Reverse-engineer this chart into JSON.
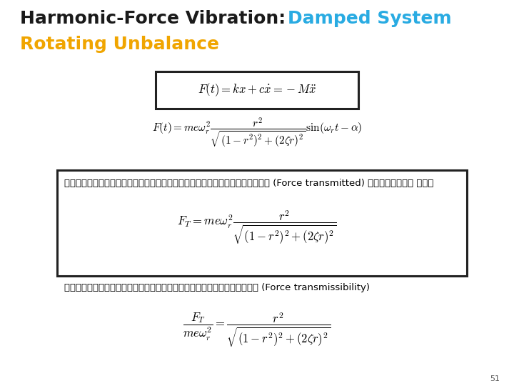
{
  "bg_color": "#ffffff",
  "title_part1": "Harmonic-Force Vibration:",
  "title_part2": "Damped System",
  "subtitle": "Rotating Unbalance",
  "title_color1": "#1a1a1a",
  "title_color2": "#29abe2",
  "subtitle_color": "#f0a500",
  "title_fontsize": 18,
  "subtitle_fontsize": 18,
  "page_number": "51",
  "eq1_latex": "$F(t) = kx + c\\dot{x} = -M\\ddot{x}$",
  "eq2_latex": "$F(t) = me\\omega_r^2 \\dfrac{r^2}{\\sqrt{(1-r^2)^2+(2\\zeta r)^2}} \\sin(\\omega_r t - \\alpha)$",
  "box1_text_th": "โดยที่ขนาดการสั่นสูงสุดของแรงส่งผ่าน (Force transmitted) ไปยังฐาน คือ",
  "eq3_latex": "$F_T = me\\omega_r^2 \\dfrac{r^2}{\\sqrt{(1-r^2)^2+(2\\zeta r)^2}}$",
  "text2_th": "เรากำหนดให้ความสามารถการส่งถ่ายแรง (Force transmissibility)",
  "eq4_latex": "$\\dfrac{F_T}{me\\omega_r^2} = \\dfrac{r^2}{\\sqrt{(1-r^2)^2+(2\\zeta r)^2}}$",
  "box_border_color": "#222222",
  "body_fontsize": 9.5,
  "eq_fontsize": 11,
  "eq1_fontsize": 12
}
